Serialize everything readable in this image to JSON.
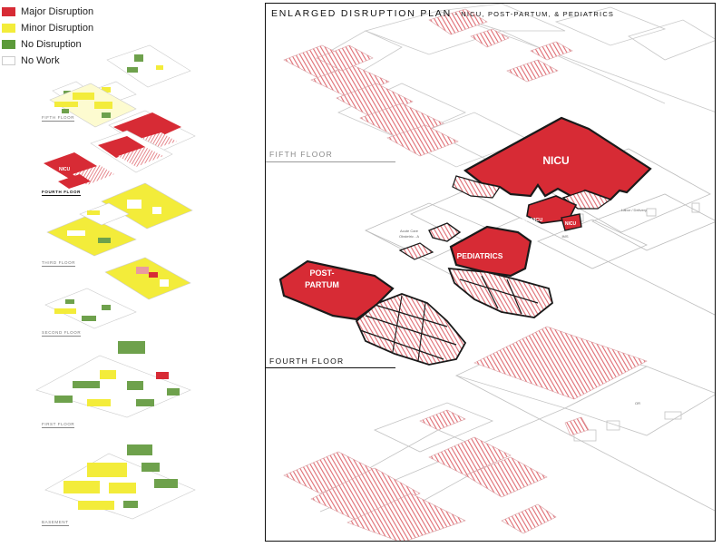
{
  "legend": {
    "items": [
      {
        "label": "Major Disruption",
        "color": "#d72b35"
      },
      {
        "label": "Minor Disruption",
        "color": "#f3ec3a"
      },
      {
        "label": "No Disruption",
        "color": "#5c9a3a"
      },
      {
        "label": "No Work",
        "color": "#ffffff"
      }
    ]
  },
  "floor_stack": {
    "labels": {
      "fifth": "FIFTH FLOOR",
      "fourth": "FOURTH FLOOR",
      "third": "THIRD FLOOR",
      "second": "SECOND FLOOR",
      "first": "FIRST FLOOR",
      "basement": "BASEMENT"
    },
    "nicu_tag": "NICU"
  },
  "panel": {
    "title": "ENLARGED DISRUPTION PLAN",
    "subtitle": " - NICU, POST-PARTUM, & PEDIATRICS",
    "fifth_floor_label": "FIFTH FLOOR",
    "fourth_floor_label": "FOURTH FLOOR",
    "departments": {
      "nicu": "NICU",
      "pediatrics": "PEDIATRICS",
      "postpartum_line1": "POST-",
      "postpartum_line2": "PARTUM",
      "exnicu": "EX-NICU",
      "nicu_small": "NICU"
    },
    "rooms": {
      "labor": "Labor / Delivery",
      "ims": "IMS",
      "acute1": "Acute Care",
      "acute2": "Obstetric - A",
      "or": "OR"
    }
  },
  "colors": {
    "major": "#d72b35",
    "hatch": "#e06b72",
    "outline": "#1a1a1a",
    "plan_line": "#bdbdbd"
  }
}
